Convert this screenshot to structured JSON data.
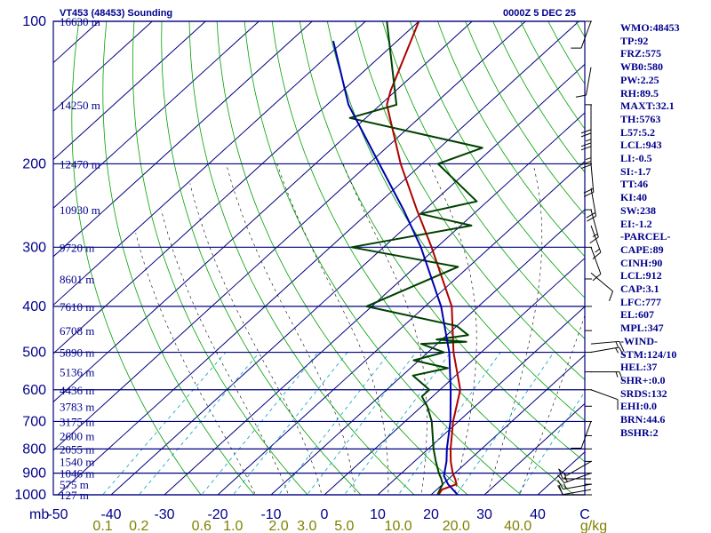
{
  "header": {
    "station_title": "VT453 (48453) Sounding",
    "valid_time": "0000Z  5 DEC 25"
  },
  "indices": [
    "WMO:48453",
    "TP:92",
    "FRZ:575",
    "WB0:580",
    "PW:2.25",
    "RH:89.5",
    "MAXT:32.1",
    "TH:5763",
    "L57:5.2",
    "LCL:943",
    "LI:-0.5",
    "SI:-1.7",
    "TT:46",
    "KI:40",
    "SW:238",
    "EI:-1.2",
    "-PARCEL-",
    "CAPE:89",
    "CINH:90",
    "LCL:912",
    "CAP:3.1",
    "LFC:777",
    "EL:607",
    "MPL:347",
    "-WIND-",
    "STM:124/10",
    "HEL:37",
    "SHR+:0.0",
    "SRDS:132",
    "EHI:0.0",
    "BRN:44.6",
    "BSHR:2"
  ],
  "chart_data": {
    "type": "line",
    "chart_kind": "Skew-T log-P diagram",
    "x_axis": {
      "unit_label": "C",
      "ticks": [
        -50,
        -40,
        -30,
        -20,
        -10,
        0,
        10,
        20,
        30,
        40
      ],
      "tick_labels": [
        "-50",
        "-40",
        "-30",
        "-20",
        "-10",
        "0",
        "10",
        "20",
        "30",
        "40"
      ],
      "range": [
        -50,
        50
      ]
    },
    "y_axis": {
      "unit_label": "mb",
      "scale": "log",
      "range": [
        1000,
        100
      ],
      "tick_labels": [
        {
          "p": 100,
          "label": "100"
        },
        {
          "p": 200,
          "label": "200"
        },
        {
          "p": 300,
          "label": "300"
        },
        {
          "p": 400,
          "label": "400"
        },
        {
          "p": 500,
          "label": "500"
        },
        {
          "p": 600,
          "label": "600"
        },
        {
          "p": 700,
          "label": "700"
        },
        {
          "p": 800,
          "label": "800"
        },
        {
          "p": 900,
          "label": "900"
        },
        {
          "p": 1000,
          "label": "1000"
        }
      ]
    },
    "height_labels": [
      {
        "p": 100,
        "label": "16630 m"
      },
      {
        "p": 150,
        "label": "14250 m"
      },
      {
        "p": 200,
        "label": "12470 m"
      },
      {
        "p": 250,
        "label": "10930 m"
      },
      {
        "p": 300,
        "label": "9720 m"
      },
      {
        "p": 350,
        "label": "8601 m"
      },
      {
        "p": 400,
        "label": "7610 m"
      },
      {
        "p": 450,
        "label": "6708 m"
      },
      {
        "p": 500,
        "label": "5890 m"
      },
      {
        "p": 550,
        "label": "5136 m"
      },
      {
        "p": 600,
        "label": "4436 m"
      },
      {
        "p": 650,
        "label": "3783 m"
      },
      {
        "p": 700,
        "label": "3175 m"
      },
      {
        "p": 750,
        "label": "2600 m"
      },
      {
        "p": 800,
        "label": "2055 m"
      },
      {
        "p": 850,
        "label": "1540 m"
      },
      {
        "p": 900,
        "label": "1046 m"
      },
      {
        "p": 950,
        "label": "575 m"
      },
      {
        "p": 1000,
        "label": "127 m"
      }
    ],
    "mixing_ratio_labels": [
      {
        "w": 0.1,
        "label": "0.1"
      },
      {
        "w": 0.2,
        "label": "0.2"
      },
      {
        "w": 0.6,
        "label": "0.6"
      },
      {
        "w": 1.0,
        "label": "1.0"
      },
      {
        "w": 2.0,
        "label": "2.0"
      },
      {
        "w": 3.0,
        "label": "3.0"
      },
      {
        "w": 5.0,
        "label": "5.0"
      },
      {
        "w": 10.0,
        "label": "10.0"
      },
      {
        "w": 20.0,
        "label": "20.0"
      },
      {
        "w": 40.0,
        "label": "40.0"
      }
    ],
    "mixing_ratio_unit": "g/kg",
    "series": [
      {
        "role": "temperature",
        "color": "#b00000",
        "p": [
          1000,
          975,
          950,
          925,
          900,
          850,
          800,
          700,
          600,
          500,
          400,
          300,
          250,
          200,
          150,
          140,
          100
        ],
        "t": [
          21.4,
          21.0,
          22.6,
          21.2,
          19.6,
          16.8,
          14.2,
          9.0,
          3.8,
          -5.2,
          -15.0,
          -31.0,
          -41.5,
          -54.0,
          -68.8,
          -71.0,
          -80.0
        ]
      },
      {
        "role": "dewpoint",
        "color": "#004000",
        "p": [
          1000,
          975,
          950,
          925,
          900,
          850,
          800,
          700,
          650,
          620,
          600,
          560,
          540,
          520,
          500,
          480,
          475,
          470,
          460,
          440,
          400,
          330,
          300,
          270,
          255,
          240,
          200,
          185,
          160,
          150,
          100
        ],
        "t": [
          21.2,
          20.6,
          20.0,
          18.6,
          17.0,
          14.0,
          11.0,
          5.0,
          1.0,
          -2.0,
          -2.0,
          -8.0,
          -3.0,
          -11.0,
          -7.0,
          -13.0,
          -5.0,
          -11.0,
          -6.0,
          -10.0,
          -31.0,
          -22.0,
          -46.0,
          -28.0,
          -40.0,
          -32.0,
          -47.0,
          -42.0,
          -73.0,
          -67.0,
          -86.0
        ]
      },
      {
        "role": "parcel",
        "color": "#0000b0",
        "p": [
          1000,
          950,
          912,
          850,
          800,
          700,
          600,
          500,
          400,
          300,
          250,
          200,
          150,
          110
        ],
        "t": [
          25.0,
          21.0,
          18.5,
          16.0,
          13.5,
          8.5,
          2.0,
          -6.0,
          -17.0,
          -33.0,
          -44.0,
          -58.0,
          -76.0,
          -92.0
        ]
      }
    ],
    "wind_barbs": [
      {
        "p": 1000,
        "dir": 270,
        "kt": 10
      },
      {
        "p": 975,
        "dir": 260,
        "kt": 10
      },
      {
        "p": 950,
        "dir": 260,
        "kt": 15
      },
      {
        "p": 925,
        "dir": 270,
        "kt": 15
      },
      {
        "p": 900,
        "dir": 250,
        "kt": 15
      },
      {
        "p": 850,
        "dir": 240,
        "kt": 10
      },
      {
        "p": 700,
        "dir": 200,
        "kt": 10
      },
      {
        "p": 600,
        "dir": 110,
        "kt": 10
      },
      {
        "p": 550,
        "dir": 90,
        "kt": 15
      },
      {
        "p": 500,
        "dir": 80,
        "kt": 15
      },
      {
        "p": 480,
        "dir": 85,
        "kt": 15
      },
      {
        "p": 340,
        "dir": 130,
        "kt": 10
      },
      {
        "p": 300,
        "dir": 160,
        "kt": 10
      },
      {
        "p": 270,
        "dir": 160,
        "kt": 15
      },
      {
        "p": 250,
        "dir": 165,
        "kt": 15
      },
      {
        "p": 225,
        "dir": 170,
        "kt": 20
      },
      {
        "p": 200,
        "dir": 175,
        "kt": 20
      },
      {
        "p": 175,
        "dir": 180,
        "kt": 25
      },
      {
        "p": 160,
        "dir": 180,
        "kt": 25
      },
      {
        "p": 150,
        "dir": 180,
        "kt": 20
      },
      {
        "p": 125,
        "dir": 190,
        "kt": 10
      },
      {
        "p": 100,
        "dir": 200,
        "kt": 10
      }
    ],
    "colors": {
      "frame": "#000080",
      "isobar": "#000080",
      "isotherm": "#000080",
      "dry_adiabat": "#00a000",
      "moist_adiabat": "#000000",
      "mixing_ratio": "#00a0c0",
      "axis_text": "#00008b",
      "mixing_text": "#808000",
      "height_text": "#00008b",
      "barb": "#000000"
    }
  }
}
